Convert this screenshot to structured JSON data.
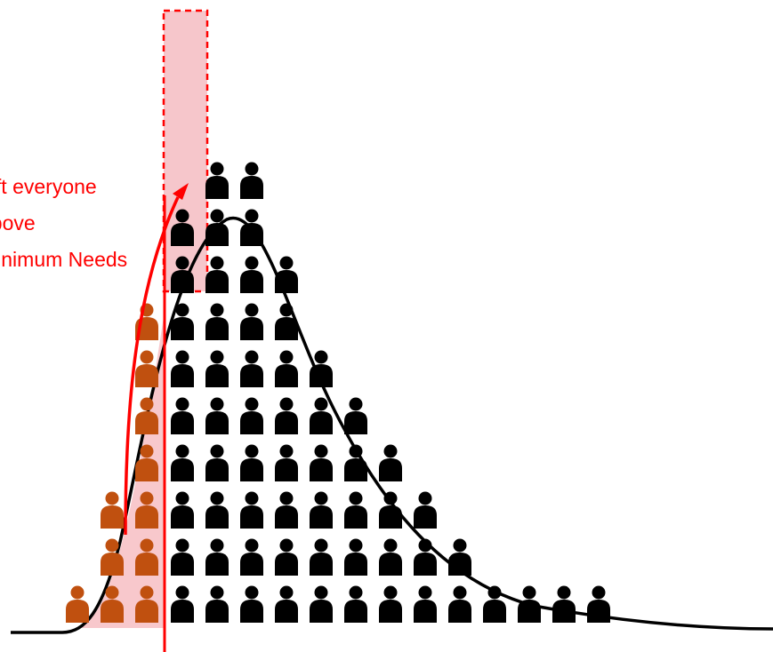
{
  "label": {
    "lines": [
      "Lift everyone",
      "above",
      "Minimum Needs"
    ]
  },
  "colors": {
    "curve": "#000000",
    "person_above": "#000000",
    "person_below": "#c0500f",
    "threshold_line": "#ff0000",
    "shaded_area": "#f8c8cc",
    "target_box_fill": "#f6c6cb",
    "target_box_border": "#ff0000",
    "arrow": "#ff0000"
  },
  "icons": {
    "person": "person-icon",
    "arrow": "arrow-up-icon"
  },
  "population": {
    "below_threshold_columns": [
      1,
      3,
      7
    ],
    "above_threshold_columns": [
      9,
      10,
      10,
      8,
      6,
      5,
      4,
      3,
      2,
      1,
      1,
      1,
      1
    ]
  }
}
